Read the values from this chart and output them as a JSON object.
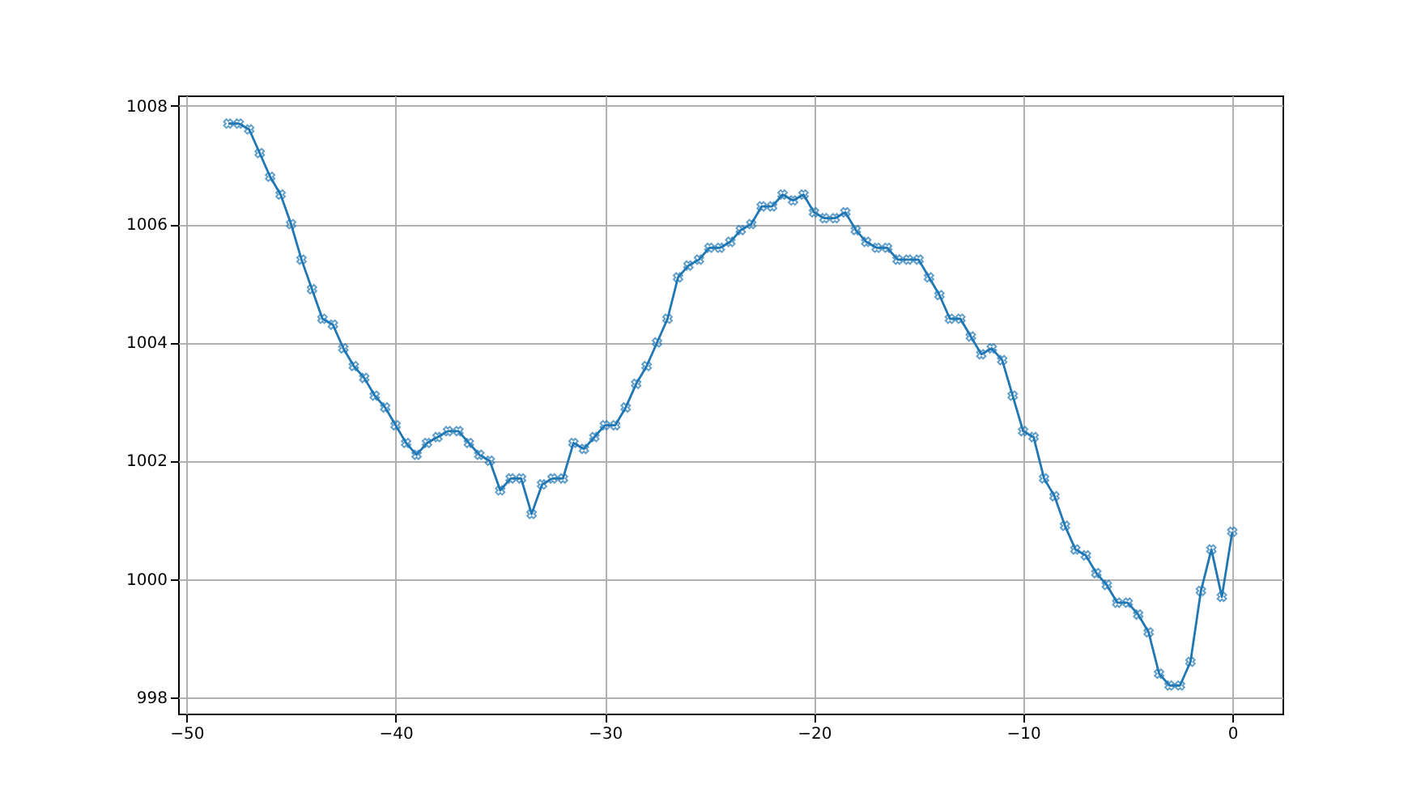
{
  "chart_data": {
    "type": "line",
    "x": [
      -48,
      -47.5,
      -47,
      -46.5,
      -46,
      -45.5,
      -45,
      -44.5,
      -44,
      -43.5,
      -43,
      -42.5,
      -42,
      -41.5,
      -41,
      -40.5,
      -40,
      -39.5,
      -39,
      -38.5,
      -38,
      -37.5,
      -37,
      -36.5,
      -36,
      -35.5,
      -35,
      -34.5,
      -34,
      -33.5,
      -33,
      -32.5,
      -32,
      -31.5,
      -31,
      -30.5,
      -30,
      -29.5,
      -29,
      -28.5,
      -28,
      -27.5,
      -27,
      -26.5,
      -26,
      -25.5,
      -25,
      -24.5,
      -24,
      -23.5,
      -23,
      -22.5,
      -22,
      -21.5,
      -21,
      -20.5,
      -20,
      -19.5,
      -19,
      -18.5,
      -18,
      -17.5,
      -17,
      -16.5,
      -16,
      -15.5,
      -15,
      -14.5,
      -14,
      -13.5,
      -13,
      -12.5,
      -12,
      -11.5,
      -11,
      -10.5,
      -10,
      -9.5,
      -9,
      -8.5,
      -8,
      -7.5,
      -7,
      -6.5,
      -6,
      -5.5,
      -5,
      -4.5,
      -4,
      -3.5,
      -3,
      -2.5,
      -2,
      -1.5,
      -1,
      -0.5,
      0
    ],
    "series": [
      {
        "color": "#1f77b4",
        "values": [
          1007.7,
          1007.7,
          1007.6,
          1007.2,
          1006.8,
          1006.5,
          1006.0,
          1005.4,
          1004.9,
          1004.4,
          1004.3,
          1003.9,
          1003.6,
          1003.4,
          1003.1,
          1002.9,
          1002.6,
          1002.3,
          1002.1,
          1002.3,
          1002.4,
          1002.5,
          1002.5,
          1002.3,
          1002.1,
          1002.0,
          1001.5,
          1001.7,
          1001.7,
          1001.1,
          1001.6,
          1001.7,
          1001.7,
          1002.3,
          1002.2,
          1002.4,
          1002.6,
          1002.6,
          1002.9,
          1003.3,
          1003.6,
          1004.0,
          1004.4,
          1005.1,
          1005.3,
          1005.4,
          1005.6,
          1005.6,
          1005.7,
          1005.9,
          1006.0,
          1006.3,
          1006.3,
          1006.5,
          1006.4,
          1006.5,
          1006.2,
          1006.1,
          1006.1,
          1006.2,
          1005.9,
          1005.7,
          1005.6,
          1005.6,
          1005.4,
          1005.4,
          1005.4,
          1005.1,
          1004.8,
          1004.4,
          1004.4,
          1004.1,
          1003.8,
          1003.9,
          1003.7,
          1003.1,
          1002.5,
          1002.4,
          1001.7,
          1001.4,
          1000.9,
          1000.5,
          1000.4,
          1000.1,
          999.9,
          999.6,
          999.6,
          999.4,
          999.1,
          998.4,
          998.2,
          998.2,
          998.6,
          999.8,
          1000.5,
          999.7,
          1000.8
        ]
      }
    ],
    "xlim": [
      -50.4,
      2.4
    ],
    "ylim": [
      997.725,
      1008.175
    ],
    "xticks": [
      -50,
      -40,
      -30,
      -20,
      -10,
      0
    ],
    "yticks": [
      998,
      1000,
      1002,
      1004,
      1006,
      1008
    ],
    "grid": true,
    "marker": "cross",
    "line_style": "solid"
  }
}
